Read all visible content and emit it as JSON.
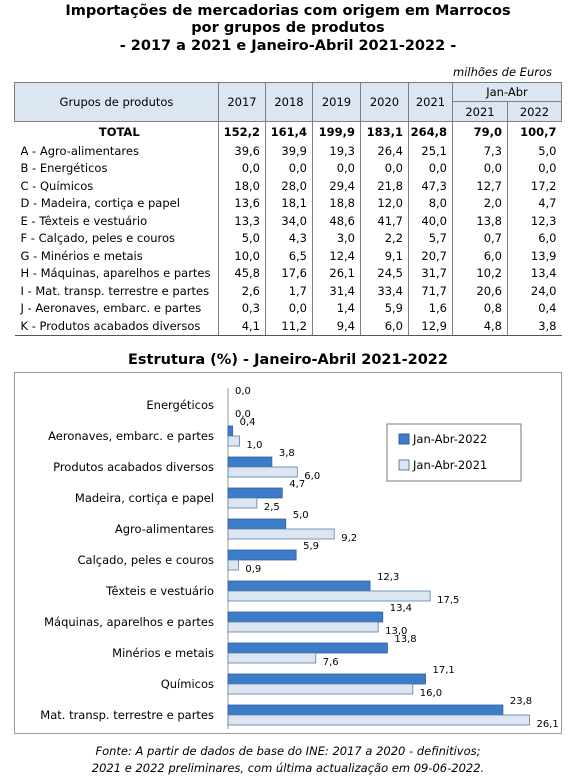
{
  "title_lines": [
    "Importações de mercadorias com origem em Marrocos",
    "por grupos de produtos",
    "- 2017 a 2021 e Janeiro-Abril 2021-2022 -"
  ],
  "unit": "milhões de Euros",
  "table": {
    "header_group": "Grupos de produtos",
    "header_years": [
      "2017",
      "2018",
      "2019",
      "2020",
      "2021"
    ],
    "header_period": "Jan-Abr",
    "header_period_years": [
      "2021",
      "2022"
    ],
    "total": {
      "label": "TOTAL",
      "values": [
        "152,2",
        "161,4",
        "199,9",
        "183,1",
        "264,8",
        "79,0",
        "100,7"
      ]
    },
    "rows": [
      {
        "code": "A -",
        "label": "Agro-alimentares",
        "values": [
          "39,6",
          "39,9",
          "19,3",
          "26,4",
          "25,1",
          "7,3",
          "5,0"
        ]
      },
      {
        "code": "B -",
        "label": "Energéticos",
        "values": [
          "0,0",
          "0,0",
          "0,0",
          "0,0",
          "0,0",
          "0,0",
          "0,0"
        ]
      },
      {
        "code": "C -",
        "label": "Químicos",
        "values": [
          "18,0",
          "28,0",
          "29,4",
          "21,8",
          "47,3",
          "12,7",
          "17,2"
        ]
      },
      {
        "code": "D -",
        "label": "Madeira, cortiça e papel",
        "values": [
          "13,6",
          "18,1",
          "18,8",
          "12,0",
          "8,0",
          "2,0",
          "4,7"
        ]
      },
      {
        "code": "E -",
        "label": "Têxteis e vestuário",
        "values": [
          "13,3",
          "34,0",
          "48,6",
          "41,7",
          "40,0",
          "13,8",
          "12,3"
        ]
      },
      {
        "code": "F -",
        "label": "Calçado, peles e couros",
        "values": [
          "5,0",
          "4,3",
          "3,0",
          "2,2",
          "5,7",
          "0,7",
          "6,0"
        ]
      },
      {
        "code": "G -",
        "label": "Minérios e metais",
        "values": [
          "10,0",
          "6,5",
          "12,4",
          "9,1",
          "20,7",
          "6,0",
          "13,9"
        ]
      },
      {
        "code": "H -",
        "label": "Máquinas, aparelhos e partes",
        "values": [
          "45,8",
          "17,6",
          "26,1",
          "24,5",
          "31,7",
          "10,2",
          "13,4"
        ]
      },
      {
        "code": "I -",
        "label": "Mat. transp. terrestre e partes",
        "values": [
          "2,6",
          "1,7",
          "31,4",
          "33,4",
          "71,7",
          "20,6",
          "24,0"
        ]
      },
      {
        "code": "J -",
        "label": "Aeronaves, embarc. e partes",
        "values": [
          "0,3",
          "0,0",
          "1,4",
          "5,9",
          "1,6",
          "0,8",
          "0,4"
        ]
      },
      {
        "code": "K -",
        "label": "Produtos acabados diversos",
        "values": [
          "4,1",
          "11,2",
          "9,4",
          "6,0",
          "12,9",
          "4,8",
          "3,8"
        ]
      }
    ]
  },
  "chart_title": "Estrutura (%) - Janeiro-Abril 2021-2022",
  "chart_data": {
    "type": "bar",
    "orientation": "horizontal",
    "categories": [
      "Energéticos",
      "Aeronaves, embarc. e partes",
      "Produtos acabados diversos",
      "Madeira, cortiça e papel",
      "Agro-alimentares",
      "Calçado, peles e couros",
      "Têxteis e vestuário",
      "Máquinas, aparelhos e partes",
      "Minérios e metais",
      "Químicos",
      "Mat. transp. terrestre e partes"
    ],
    "series": [
      {
        "name": "Jan-Abr-2022",
        "values": [
          0.0,
          0.4,
          3.8,
          4.7,
          5.0,
          5.9,
          12.3,
          13.4,
          13.8,
          17.1,
          23.8
        ],
        "labels": [
          "0,0",
          "0,4",
          "3,8",
          "4,7",
          "5,0",
          "5,9",
          "12,3",
          "13,4",
          "13,8",
          "17,1",
          "23,8"
        ],
        "color": "#3d7cc9"
      },
      {
        "name": "Jan-Abr-2021",
        "values": [
          0.0,
          1.0,
          6.0,
          2.5,
          9.2,
          0.9,
          17.5,
          13.0,
          7.6,
          16.0,
          26.1
        ],
        "labels": [
          "0,0",
          "1,0",
          "6,0",
          "2,5",
          "9,2",
          "0,9",
          "17,5",
          "13,0",
          "7,6",
          "16,0",
          "26,1"
        ],
        "color": "#dce6f2"
      }
    ],
    "legend_position": "top-right",
    "grid": false
  },
  "source_lines": [
    "Fonte: A partir de dados de base do INE: 2017 a 2020 - definitivos;",
    "2021 e 2022 preliminares, com última actualização em 09-06-2022."
  ]
}
